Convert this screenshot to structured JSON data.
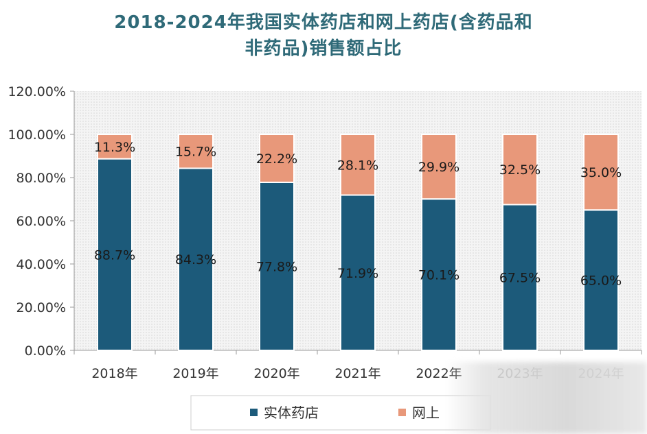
{
  "title_line1": "2018-2024年我国实体药店和网上药店(含药品和",
  "title_line2": "非药品)销售额占比",
  "chart_data": {
    "type": "bar",
    "stacked": true,
    "title": "2018-2024年我国实体药店和网上药店(含药品和非药品)销售额占比",
    "categories": [
      "2018年",
      "2019年",
      "2020年",
      "2021年",
      "2022年",
      "2023年",
      "2024年"
    ],
    "series": [
      {
        "name": "实体药店",
        "color": "#1c5a7a",
        "values": [
          88.7,
          84.3,
          77.8,
          71.9,
          70.1,
          67.5,
          65.0
        ],
        "labels": [
          "88.7%",
          "84.3%",
          "77.8%",
          "71.9%",
          "70.1%",
          "67.5%",
          "65.0%"
        ]
      },
      {
        "name": "网上药店",
        "color": "#e8987a",
        "values": [
          11.3,
          15.7,
          22.2,
          28.1,
          29.9,
          32.5,
          35.0
        ],
        "labels": [
          "11.3%",
          "15.7%",
          "22.2%",
          "28.1%",
          "29.9%",
          "32.5%",
          "35.0%"
        ]
      }
    ],
    "ylim": [
      0,
      120
    ],
    "yticks": [
      0,
      20,
      40,
      60,
      80,
      100,
      120
    ],
    "ytick_labels": [
      "0.00%",
      "20.00%",
      "40.00%",
      "60.00%",
      "80.00%",
      "100.00%",
      "120.00%"
    ],
    "legend": {
      "placement": "bottom",
      "items": [
        "实体药店",
        "网上"
      ]
    },
    "grid": false
  }
}
